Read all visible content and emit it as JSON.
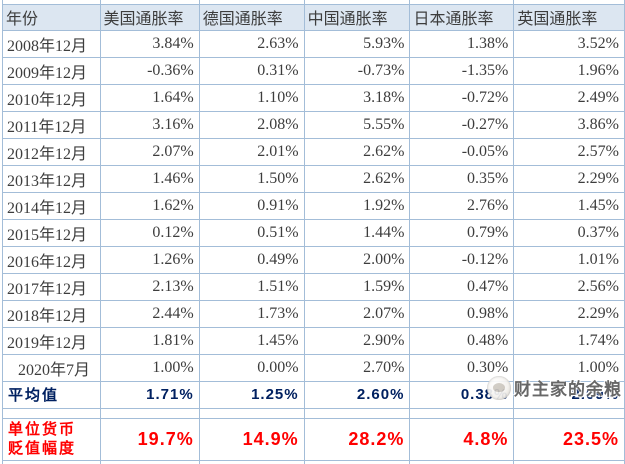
{
  "table": {
    "headers": [
      "年份",
      "美国通胀率",
      "德国通胀率",
      "中国通胀率",
      "日本通胀率",
      "英国通胀率"
    ],
    "rows": [
      [
        "2008年12月",
        "3.84%",
        "2.63%",
        "5.93%",
        "1.38%",
        "3.52%"
      ],
      [
        "2009年12月",
        "-0.36%",
        "0.31%",
        "-0.73%",
        "-1.35%",
        "1.96%"
      ],
      [
        "2010年12月",
        "1.64%",
        "1.10%",
        "3.18%",
        "-0.72%",
        "2.49%"
      ],
      [
        "2011年12月",
        "3.16%",
        "2.08%",
        "5.55%",
        "-0.27%",
        "3.86%"
      ],
      [
        "2012年12月",
        "2.07%",
        "2.01%",
        "2.62%",
        "-0.05%",
        "2.57%"
      ],
      [
        "2013年12月",
        "1.46%",
        "1.50%",
        "2.62%",
        "0.35%",
        "2.29%"
      ],
      [
        "2014年12月",
        "1.62%",
        "0.91%",
        "1.92%",
        "2.76%",
        "1.45%"
      ],
      [
        "2015年12月",
        "0.12%",
        "0.51%",
        "1.44%",
        "0.79%",
        "0.37%"
      ],
      [
        "2016年12月",
        "1.26%",
        "0.49%",
        "2.00%",
        "-0.12%",
        "1.01%"
      ],
      [
        "2017年12月",
        "2.13%",
        "1.51%",
        "1.59%",
        "0.47%",
        "2.56%"
      ],
      [
        "2018年12月",
        "2.44%",
        "1.73%",
        "2.07%",
        "0.98%",
        "2.29%"
      ],
      [
        "2019年12月",
        "1.81%",
        "1.45%",
        "2.90%",
        "0.48%",
        "1.74%"
      ],
      [
        "2020年7月",
        "1.00%",
        "0.00%",
        "2.70%",
        "0.30%",
        "1.00%"
      ]
    ],
    "average": {
      "label": "平均值",
      "values": [
        "1.71%",
        "1.25%",
        "2.60%",
        "0.38%",
        "2.09%"
      ]
    },
    "depreciation": {
      "label_lines": [
        "单位货币",
        "贬值幅度"
      ],
      "values": [
        "19.7%",
        "14.9%",
        "28.2%",
        "4.8%",
        "23.5%"
      ]
    }
  },
  "watermark": {
    "text": "财主家的余粮"
  },
  "colors": {
    "border": "#a3bdd8",
    "header_bg": "#dce6f1",
    "body_text": "#3d3d3d",
    "average_text": "#002060",
    "depreciation_text": "#ff0000"
  }
}
